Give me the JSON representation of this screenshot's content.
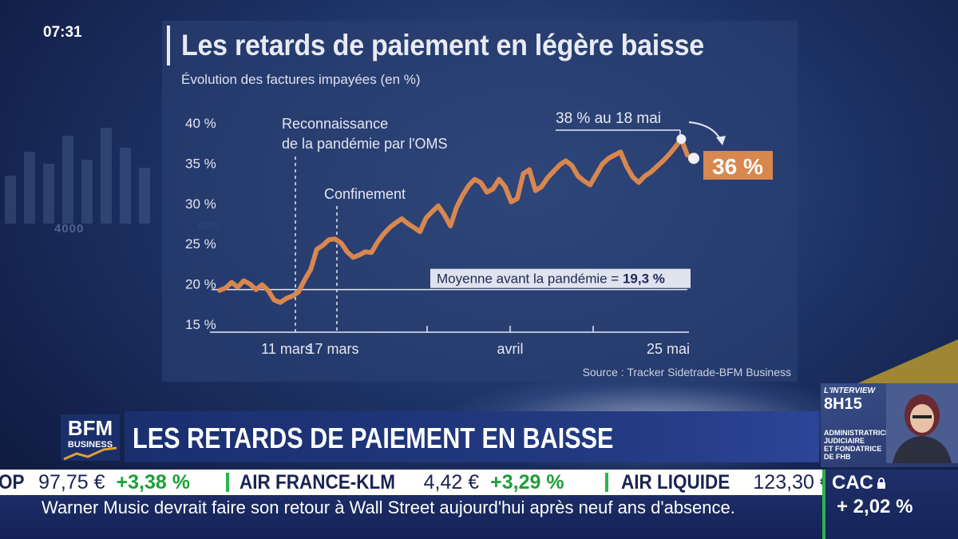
{
  "clock": "07:31",
  "chart": {
    "title": "Les retards de paiement en légère baisse",
    "subtitle": "Évolution des factures impayées (en %)",
    "source": "Source : Tracker Sidetrade-BFM Business",
    "annotations": {
      "who": [
        "Reconnaissance",
        "de la pandémie par l'OMS"
      ],
      "lockdown": "Confinement",
      "peak": "38 % au 18 mai",
      "last": "36 %",
      "average": "Moyenne avant la pandémie = ",
      "average_value": "19,3 %"
    }
  },
  "chart_data": {
    "type": "line",
    "title": "Les retards de paiement en légère baisse",
    "subtitle": "Évolution des factures impayées (en %)",
    "ylim": [
      15,
      40
    ],
    "yticks": [
      "40 %",
      "35 %",
      "30 %",
      "25 %",
      "20 %",
      "15 %"
    ],
    "xticks": [
      "11 mars",
      "17 mars",
      "avril",
      "25 mai"
    ],
    "reference_line": {
      "label": "Moyenne avant la pandémie",
      "value": 19.3
    },
    "series": [
      {
        "x": [
          0,
          1,
          2,
          3,
          4,
          5,
          6,
          7,
          8,
          9,
          10,
          11,
          12,
          13,
          14,
          15,
          16,
          17,
          18,
          19,
          20,
          21,
          22,
          23,
          24,
          25,
          26,
          27,
          28,
          29,
          30,
          31,
          32,
          33,
          34,
          35,
          36,
          37,
          38,
          39,
          40,
          41,
          42,
          43,
          44,
          45,
          46,
          47,
          48,
          49,
          50,
          51,
          52,
          53,
          54,
          55,
          56,
          57,
          58,
          59,
          60,
          61,
          62,
          63,
          64,
          65,
          66,
          67,
          68,
          69,
          70,
          71,
          72,
          73,
          74,
          75,
          76,
          77
        ],
        "values": [
          19.2,
          19.5,
          20.2,
          19.6,
          20.4,
          20.0,
          19.3,
          19.9,
          19.2,
          18.0,
          17.7,
          18.2,
          18.5,
          19.0,
          20.5,
          21.8,
          24.3,
          24.8,
          25.5,
          25.6,
          25.1,
          24.0,
          23.3,
          23.6,
          24.0,
          23.9,
          25.2,
          26.2,
          27.0,
          27.6,
          28.1,
          27.5,
          27.0,
          26.5,
          28.2,
          29.0,
          29.7,
          28.6,
          27.2,
          29.5,
          31.0,
          32.2,
          33.0,
          32.6,
          31.4,
          31.8,
          33.0,
          32.1,
          30.2,
          30.6,
          33.7,
          34.2,
          31.6,
          32.1,
          33.2,
          34.0,
          34.8,
          35.3,
          34.7,
          33.4,
          32.8,
          32.3,
          33.6,
          34.9,
          35.6,
          36.0,
          36.4,
          34.6,
          33.3,
          32.6,
          33.4,
          33.9,
          34.6,
          35.3,
          36.1,
          37.0,
          38.0,
          36.0
        ]
      }
    ]
  },
  "headline": "LES RETARDS DE PAIEMENT EN BAISSE",
  "logo": {
    "line1": "BFM",
    "line2": "BUSINESS"
  },
  "interview": {
    "label": "L'INTERVIEW",
    "time": "8H15",
    "role": [
      "ADMINISTRATRICE",
      "JUDICIAIRE",
      "ET FONDATRICE",
      "DE FHB"
    ]
  },
  "stocks": [
    {
      "name": "OP",
      "price": "97,75 €",
      "change": "+3,38 %"
    },
    {
      "name": "AIR FRANCE-KLM",
      "price": "4,42 €",
      "change": "+3,29 %"
    },
    {
      "name": "AIR LIQUIDE",
      "price": "123,30 €",
      "change": ""
    }
  ],
  "news": "Warner Music devrait faire son retour à Wall Street aujourd'hui après neuf ans d'absence.",
  "index": {
    "name": "CAC",
    "value": "+ 2,02 %"
  },
  "colors": {
    "line": "#d8874e",
    "accent_orange": "#d8874e",
    "ticker_green": "#2fb24c",
    "navy": "#1a2452"
  },
  "background": {
    "numbers": [
      "4000",
      "6000"
    ]
  }
}
